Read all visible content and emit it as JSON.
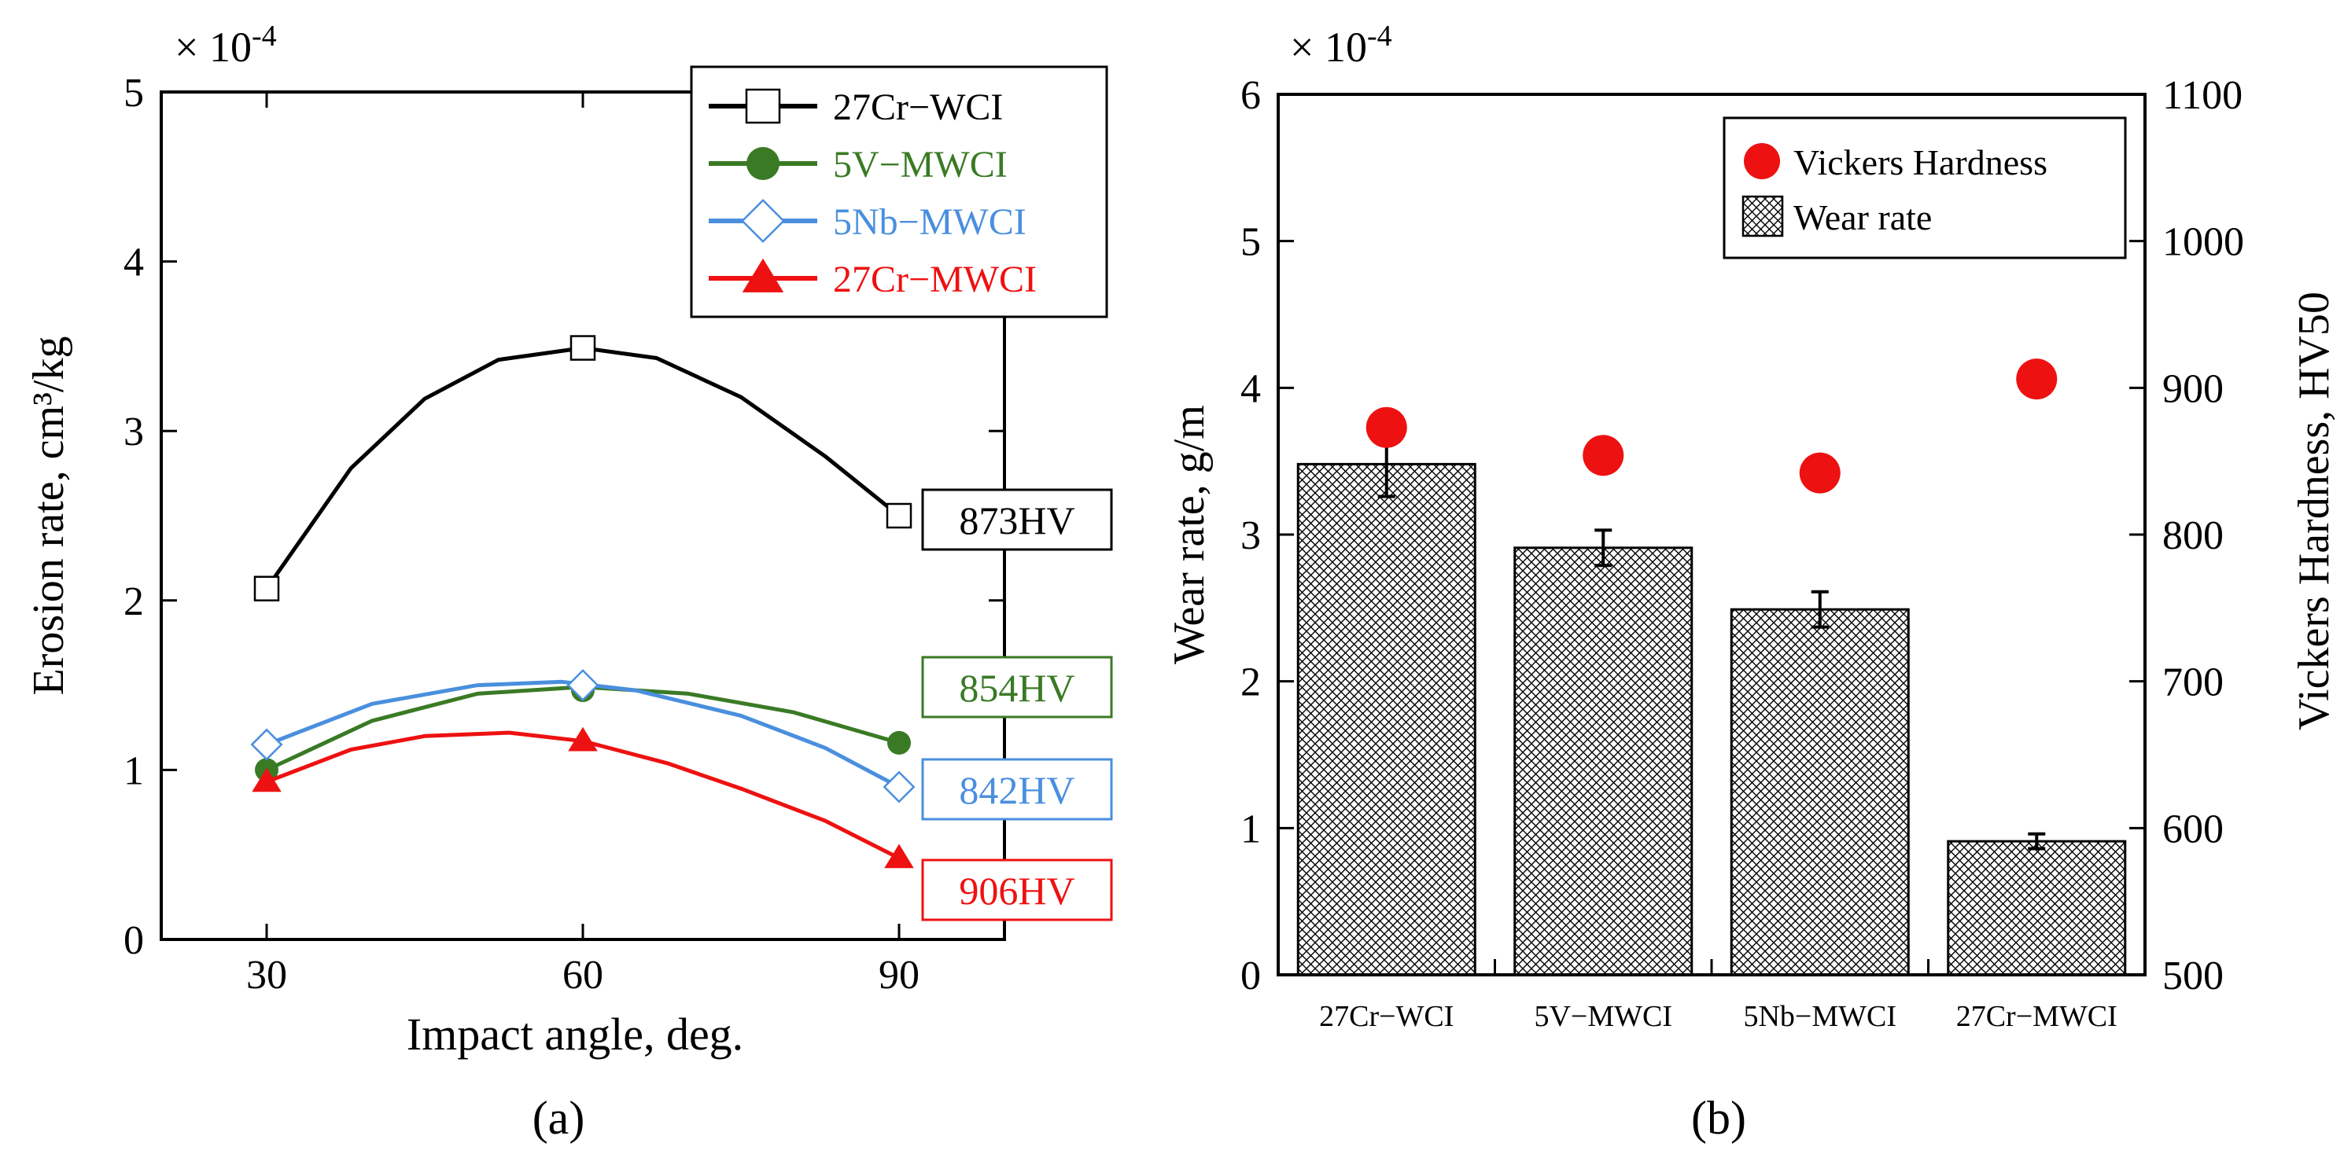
{
  "chart_data": [
    {
      "type": "line",
      "panel_label": "(a)",
      "xlabel": "Impact angle, deg.",
      "ylabel": "Erosion rate, cm³/kg",
      "scale_label": "× 10",
      "scale_exp": "-4",
      "xlim": [
        20,
        100
      ],
      "ylim": [
        0,
        5
      ],
      "xticks": [
        30,
        60,
        90
      ],
      "xtick_labels": [
        "30",
        "60",
        "90"
      ],
      "yticks": [
        0,
        1,
        2,
        3,
        4,
        5
      ],
      "ytick_labels": [
        "0",
        "1",
        "2",
        "3",
        "4",
        "5"
      ],
      "legend_position": "top-right",
      "series": [
        {
          "name": "27Cr−WCI",
          "color": "#000000",
          "marker": "square-open",
          "x": [
            30,
            60,
            90
          ],
          "values": [
            2.07,
            3.49,
            2.5
          ],
          "curve": [
            [
              30,
              2.07
            ],
            [
              38,
              2.78
            ],
            [
              45,
              3.19
            ],
            [
              52,
              3.42
            ],
            [
              60,
              3.49
            ],
            [
              67,
              3.43
            ],
            [
              75,
              3.2
            ],
            [
              83,
              2.85
            ],
            [
              90,
              2.5
            ]
          ],
          "hardness_label": "873HV"
        },
        {
          "name": "5V−MWCI",
          "color": "#3a7a25",
          "marker": "circle-filled",
          "x": [
            30,
            60,
            90
          ],
          "values": [
            1.0,
            1.47,
            1.16
          ],
          "curve": [
            [
              30,
              1.0
            ],
            [
              40,
              1.29
            ],
            [
              50,
              1.45
            ],
            [
              60,
              1.49
            ],
            [
              70,
              1.45
            ],
            [
              80,
              1.34
            ],
            [
              90,
              1.16
            ]
          ],
          "hardness_label": "854HV"
        },
        {
          "name": "5Nb−MWCI",
          "color": "#4a8fde",
          "marker": "diamond-open",
          "x": [
            30,
            60,
            90
          ],
          "values": [
            1.15,
            1.5,
            0.9
          ],
          "curve": [
            [
              30,
              1.15
            ],
            [
              40,
              1.39
            ],
            [
              50,
              1.5
            ],
            [
              58,
              1.52
            ],
            [
              65,
              1.47
            ],
            [
              75,
              1.32
            ],
            [
              83,
              1.13
            ],
            [
              90,
              0.9
            ]
          ],
          "hardness_label": "842HV"
        },
        {
          "name": "27Cr−MWCI",
          "color": "#ee1111",
          "marker": "triangle-filled",
          "x": [
            30,
            60,
            90
          ],
          "values": [
            0.93,
            1.17,
            0.48
          ],
          "curve": [
            [
              30,
              0.93
            ],
            [
              38,
              1.12
            ],
            [
              45,
              1.2
            ],
            [
              53,
              1.22
            ],
            [
              60,
              1.17
            ],
            [
              68,
              1.04
            ],
            [
              75,
              0.89
            ],
            [
              83,
              0.7
            ],
            [
              90,
              0.48
            ]
          ],
          "hardness_label": "906HV"
        }
      ]
    },
    {
      "type": "bar",
      "panel_label": "(b)",
      "categories": [
        "27Cr−WCI",
        "5V−MWCI",
        "5Nb−MWCI",
        "27Cr−MWCI"
      ],
      "ylabel": "Wear rate, g/m",
      "y2label": "Vickers Hardness, HV50",
      "scale_label": "× 10",
      "scale_exp": "-4",
      "ylim": [
        0,
        6
      ],
      "y2lim": [
        500,
        1100
      ],
      "yticks": [
        0,
        1,
        2,
        3,
        4,
        5,
        6
      ],
      "ytick_labels": [
        "0",
        "1",
        "2",
        "3",
        "4",
        "5",
        "6"
      ],
      "y2ticks": [
        500,
        600,
        700,
        800,
        900,
        1000,
        1100
      ],
      "y2tick_labels": [
        "500",
        "600",
        "700",
        "800",
        "900",
        "1000",
        "1100"
      ],
      "legend_position": "top-right",
      "series": [
        {
          "name": "Wear rate",
          "pattern": "crosshatch",
          "values": [
            3.48,
            2.91,
            2.49,
            0.91
          ],
          "errors": [
            0.22,
            0.12,
            0.12,
            0.05
          ]
        },
        {
          "name": "Vickers Hardness",
          "color": "#ee1111",
          "marker": "circle-filled",
          "values": [
            873,
            854,
            842,
            906
          ]
        }
      ]
    }
  ]
}
